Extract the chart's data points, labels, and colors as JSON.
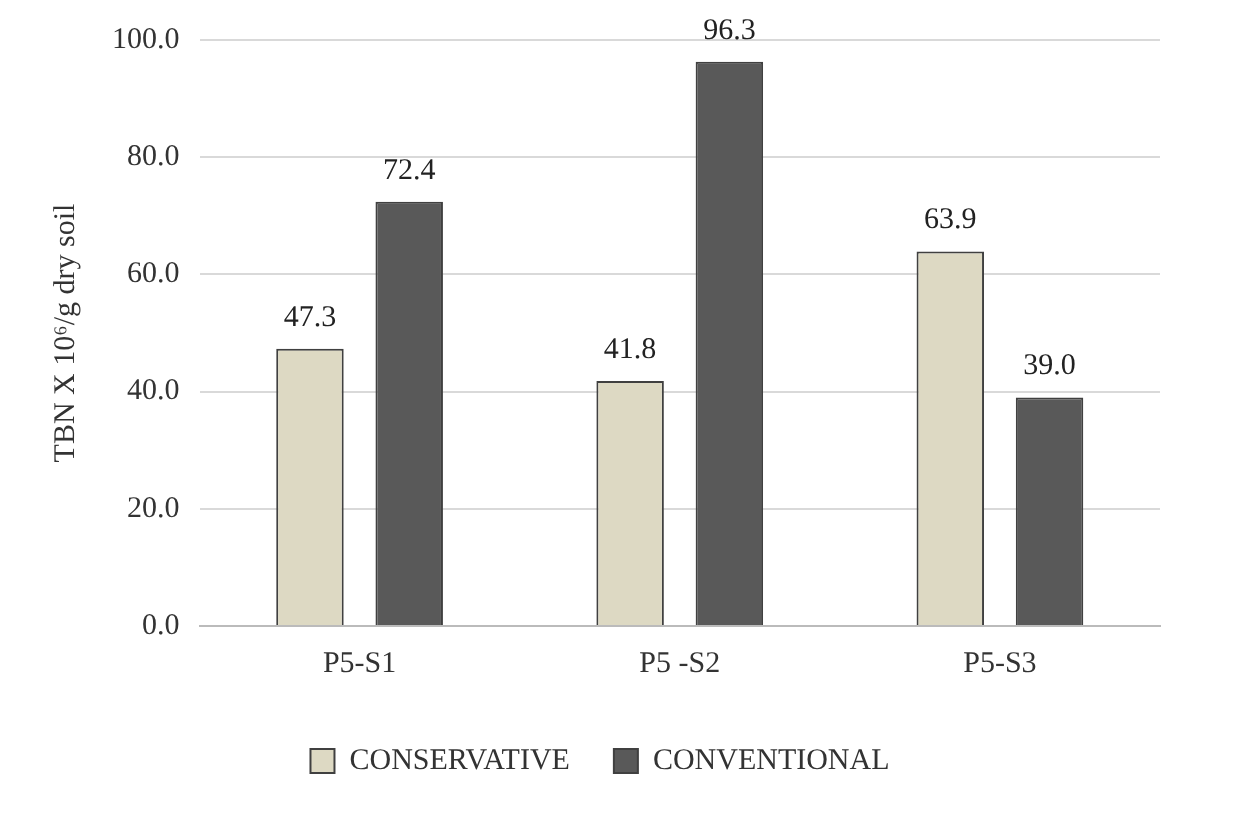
{
  "chart_data": {
    "type": "bar",
    "ylabel": "TBN X 10⁶/g dry soil",
    "categories": [
      "P5-S1",
      "P5 -S2",
      "P5-S3"
    ],
    "series": [
      {
        "name": "CONSERVATIVE",
        "color": "#ddd9c3",
        "values": [
          47.3,
          41.8,
          63.9
        ],
        "value_labels": [
          "47.3",
          "41.8",
          "63.9"
        ]
      },
      {
        "name": "CONVENTIONAL",
        "color": "#595959",
        "values": [
          72.4,
          96.3,
          39.0
        ],
        "value_labels": [
          "72.4",
          "96.3",
          "39.0"
        ]
      }
    ],
    "ylim": [
      0,
      100
    ],
    "yticks": [
      {
        "value": 0,
        "label": "0.0"
      },
      {
        "value": 20,
        "label": "20.0"
      },
      {
        "value": 40,
        "label": "40.0"
      },
      {
        "value": 60,
        "label": "60.0"
      },
      {
        "value": 80,
        "label": "80.0"
      },
      {
        "value": 100,
        "label": "100.0"
      }
    ],
    "grid": "y",
    "legend": "bottom"
  }
}
